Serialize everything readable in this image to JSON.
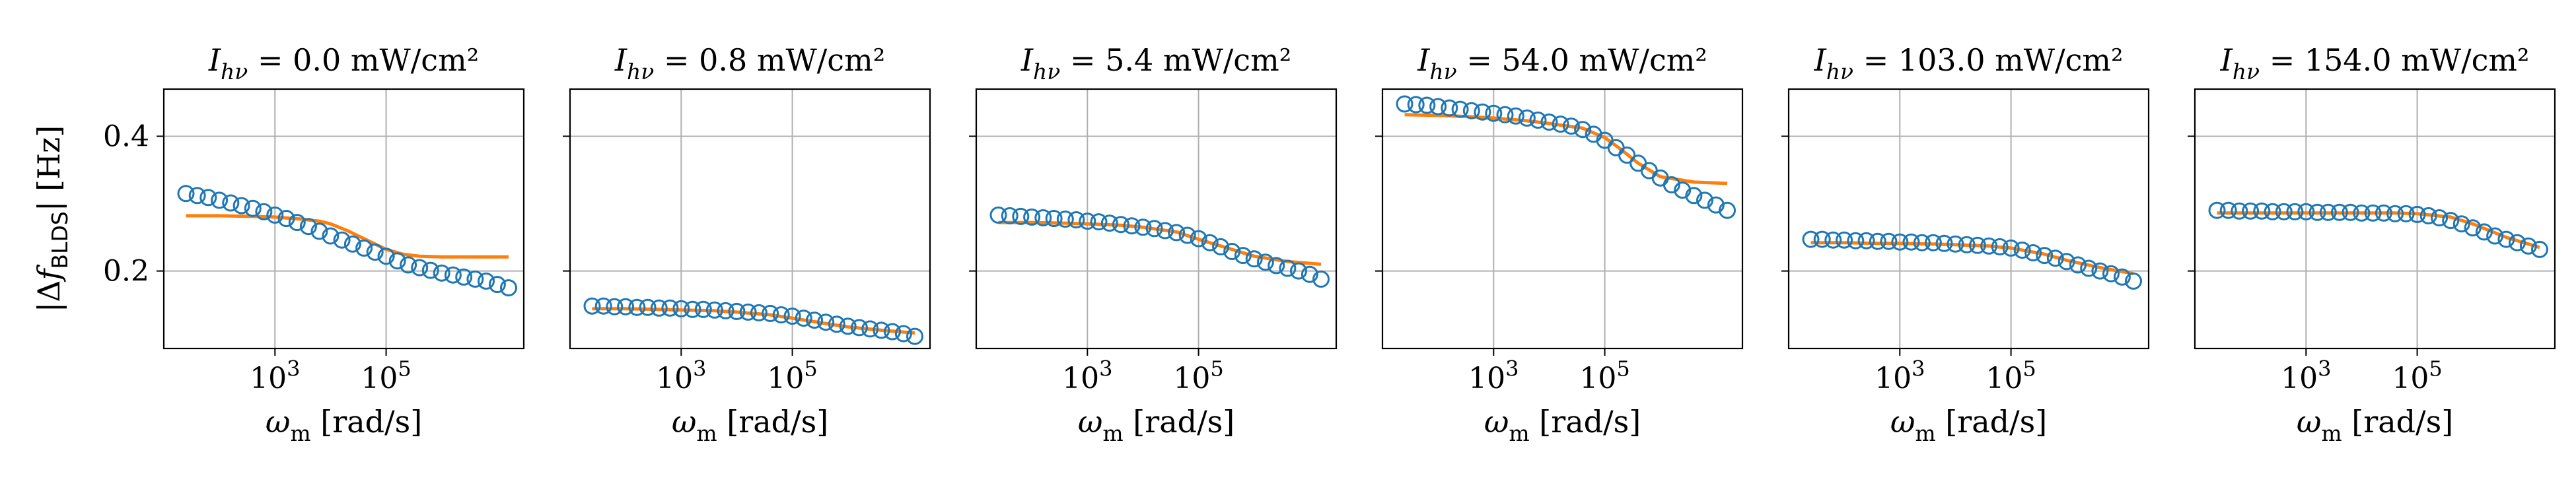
{
  "figure": {
    "ylabel": "|Δf_BLDS| [Hz]",
    "xlabel": "ω_m [rad/s]"
  },
  "chart_data": [
    {
      "type": "scatter",
      "title": "I_hν = 0.0 mW/cm²",
      "xlabel": "ω_m [rad/s]",
      "ylabel": "|Δf_BLDS| [Hz]",
      "x_scale": "log",
      "xlim": [
        10,
        30000000
      ],
      "ylim": [
        0.085,
        0.47
      ],
      "x_ticks": [
        {
          "value": 1000,
          "label": "10^3"
        },
        {
          "value": 100000,
          "label": "10^5"
        }
      ],
      "y_ticks": [
        {
          "value": 0.2,
          "label": "0.2"
        },
        {
          "value": 0.4,
          "label": "0.4"
        }
      ],
      "grid": true,
      "series": [
        {
          "kind": "markers",
          "x": [
            25,
            40,
            63,
            100,
            160,
            250,
            400,
            630,
            1000,
            1600,
            2500,
            4000,
            6300,
            10000,
            16000,
            25000,
            40000,
            63000,
            100000,
            160000,
            250000,
            400000,
            630000,
            1000000,
            1600000,
            2500000,
            4000000,
            6300000,
            10000000,
            16000000
          ],
          "y": [
            0.315,
            0.312,
            0.309,
            0.305,
            0.301,
            0.297,
            0.293,
            0.288,
            0.283,
            0.278,
            0.272,
            0.266,
            0.259,
            0.252,
            0.246,
            0.24,
            0.234,
            0.228,
            0.222,
            0.215,
            0.209,
            0.205,
            0.201,
            0.197,
            0.194,
            0.191,
            0.188,
            0.185,
            0.18,
            0.175
          ]
        },
        {
          "kind": "fit",
          "x": [
            25,
            100,
            400,
            1000,
            3000,
            6300,
            10000,
            20000,
            40000,
            63000,
            100000,
            200000,
            400000,
            1000000,
            4000000,
            16000000
          ],
          "y": [
            0.282,
            0.282,
            0.281,
            0.28,
            0.277,
            0.274,
            0.27,
            0.26,
            0.248,
            0.24,
            0.232,
            0.225,
            0.222,
            0.221,
            0.221,
            0.221
          ]
        }
      ]
    },
    {
      "type": "scatter",
      "title": "I_hν = 0.8 mW/cm²",
      "xlabel": "ω_m [rad/s]",
      "x_scale": "log",
      "xlim": [
        10,
        30000000
      ],
      "ylim": [
        0.085,
        0.47
      ],
      "x_ticks": [
        {
          "value": 1000,
          "label": "10^3"
        },
        {
          "value": 100000,
          "label": "10^5"
        }
      ],
      "y_ticks": [
        {
          "value": 0.2,
          "label": ""
        },
        {
          "value": 0.4,
          "label": ""
        }
      ],
      "grid": true,
      "series": [
        {
          "kind": "markers",
          "x": [
            25,
            40,
            63,
            100,
            160,
            250,
            400,
            630,
            1000,
            1600,
            2500,
            4000,
            6300,
            10000,
            16000,
            25000,
            40000,
            63000,
            100000,
            160000,
            250000,
            400000,
            630000,
            1000000,
            1600000,
            2500000,
            4000000,
            6300000,
            10000000,
            16000000
          ],
          "y": [
            0.148,
            0.148,
            0.147,
            0.147,
            0.146,
            0.146,
            0.145,
            0.145,
            0.144,
            0.143,
            0.143,
            0.142,
            0.141,
            0.14,
            0.139,
            0.138,
            0.137,
            0.135,
            0.133,
            0.13,
            0.127,
            0.124,
            0.121,
            0.118,
            0.116,
            0.114,
            0.112,
            0.11,
            0.107,
            0.103
          ]
        },
        {
          "kind": "fit",
          "x": [
            25,
            100,
            400,
            1000,
            4000,
            10000,
            40000,
            100000,
            400000,
            1000000,
            4000000,
            16000000
          ],
          "y": [
            0.144,
            0.144,
            0.143,
            0.142,
            0.141,
            0.139,
            0.135,
            0.13,
            0.122,
            0.117,
            0.112,
            0.108
          ]
        }
      ]
    },
    {
      "type": "scatter",
      "title": "I_hν = 5.4 mW/cm²",
      "xlabel": "ω_m [rad/s]",
      "x_scale": "log",
      "xlim": [
        10,
        30000000
      ],
      "ylim": [
        0.085,
        0.47
      ],
      "x_ticks": [
        {
          "value": 1000,
          "label": "10^3"
        },
        {
          "value": 100000,
          "label": "10^5"
        }
      ],
      "y_ticks": [
        {
          "value": 0.2,
          "label": ""
        },
        {
          "value": 0.4,
          "label": ""
        }
      ],
      "grid": true,
      "series": [
        {
          "kind": "markers",
          "x": [
            25,
            40,
            63,
            100,
            160,
            250,
            400,
            630,
            1000,
            1600,
            2500,
            4000,
            6300,
            10000,
            16000,
            25000,
            40000,
            63000,
            100000,
            160000,
            250000,
            400000,
            630000,
            1000000,
            1600000,
            2500000,
            4000000,
            6300000,
            10000000,
            16000000
          ],
          "y": [
            0.283,
            0.282,
            0.281,
            0.28,
            0.279,
            0.278,
            0.277,
            0.276,
            0.274,
            0.273,
            0.271,
            0.269,
            0.267,
            0.265,
            0.263,
            0.26,
            0.257,
            0.253,
            0.248,
            0.242,
            0.236,
            0.229,
            0.223,
            0.218,
            0.213,
            0.208,
            0.204,
            0.2,
            0.195,
            0.188
          ]
        },
        {
          "kind": "fit",
          "x": [
            25,
            100,
            400,
            1000,
            4000,
            10000,
            40000,
            100000,
            400000,
            1000000,
            4000000,
            16000000
          ],
          "y": [
            0.272,
            0.272,
            0.271,
            0.27,
            0.268,
            0.265,
            0.258,
            0.247,
            0.232,
            0.222,
            0.214,
            0.21
          ]
        }
      ]
    },
    {
      "type": "scatter",
      "title": "I_hν = 54.0 mW/cm²",
      "xlabel": "ω_m [rad/s]",
      "x_scale": "log",
      "xlim": [
        10,
        30000000
      ],
      "ylim": [
        0.085,
        0.47
      ],
      "x_ticks": [
        {
          "value": 1000,
          "label": "10^3"
        },
        {
          "value": 100000,
          "label": "10^5"
        }
      ],
      "y_ticks": [
        {
          "value": 0.2,
          "label": ""
        },
        {
          "value": 0.4,
          "label": ""
        }
      ],
      "grid": true,
      "series": [
        {
          "kind": "markers",
          "x": [
            25,
            40,
            63,
            100,
            160,
            250,
            400,
            630,
            1000,
            1600,
            2500,
            4000,
            6300,
            10000,
            16000,
            25000,
            40000,
            63000,
            100000,
            160000,
            250000,
            400000,
            630000,
            1000000,
            1600000,
            2500000,
            4000000,
            6300000,
            10000000,
            16000000
          ],
          "y": [
            0.448,
            0.447,
            0.446,
            0.444,
            0.442,
            0.44,
            0.438,
            0.436,
            0.434,
            0.432,
            0.43,
            0.427,
            0.424,
            0.421,
            0.418,
            0.415,
            0.41,
            0.403,
            0.394,
            0.383,
            0.372,
            0.36,
            0.349,
            0.338,
            0.328,
            0.32,
            0.312,
            0.305,
            0.298,
            0.29
          ]
        },
        {
          "kind": "fit",
          "x": [
            25,
            100,
            400,
            1000,
            4000,
            10000,
            40000,
            100000,
            200000,
            400000,
            1000000,
            4000000,
            16000000
          ],
          "y": [
            0.432,
            0.431,
            0.429,
            0.427,
            0.423,
            0.419,
            0.412,
            0.398,
            0.38,
            0.36,
            0.34,
            0.332,
            0.33
          ]
        }
      ]
    },
    {
      "type": "scatter",
      "title": "I_hν = 103.0 mW/cm²",
      "xlabel": "ω_m [rad/s]",
      "x_scale": "log",
      "xlim": [
        10,
        30000000
      ],
      "ylim": [
        0.085,
        0.47
      ],
      "x_ticks": [
        {
          "value": 1000,
          "label": "10^3"
        },
        {
          "value": 100000,
          "label": "10^5"
        }
      ],
      "y_ticks": [
        {
          "value": 0.2,
          "label": ""
        },
        {
          "value": 0.4,
          "label": ""
        }
      ],
      "grid": true,
      "series": [
        {
          "kind": "markers",
          "x": [
            25,
            40,
            63,
            100,
            160,
            250,
            400,
            630,
            1000,
            1600,
            2500,
            4000,
            6300,
            10000,
            16000,
            25000,
            40000,
            63000,
            100000,
            160000,
            250000,
            400000,
            630000,
            1000000,
            1600000,
            2500000,
            4000000,
            6300000,
            10000000,
            16000000
          ],
          "y": [
            0.247,
            0.247,
            0.246,
            0.246,
            0.245,
            0.245,
            0.244,
            0.244,
            0.243,
            0.243,
            0.242,
            0.242,
            0.241,
            0.24,
            0.239,
            0.238,
            0.237,
            0.236,
            0.234,
            0.231,
            0.227,
            0.223,
            0.219,
            0.214,
            0.209,
            0.204,
            0.2,
            0.196,
            0.191,
            0.185
          ]
        },
        {
          "kind": "fit",
          "x": [
            25,
            100,
            400,
            1000,
            4000,
            10000,
            40000,
            100000,
            400000,
            1000000,
            4000000,
            16000000
          ],
          "y": [
            0.242,
            0.242,
            0.241,
            0.241,
            0.24,
            0.239,
            0.237,
            0.234,
            0.225,
            0.216,
            0.205,
            0.196
          ]
        }
      ]
    },
    {
      "type": "scatter",
      "title": "I_hν = 154.0 mW/cm²",
      "xlabel": "ω_m [rad/s]",
      "x_scale": "log",
      "xlim": [
        10,
        30000000
      ],
      "ylim": [
        0.085,
        0.47
      ],
      "x_ticks": [
        {
          "value": 1000,
          "label": "10^3"
        },
        {
          "value": 100000,
          "label": "10^5"
        }
      ],
      "y_ticks": [
        {
          "value": 0.2,
          "label": ""
        },
        {
          "value": 0.4,
          "label": ""
        }
      ],
      "grid": true,
      "series": [
        {
          "kind": "markers",
          "x": [
            25,
            40,
            63,
            100,
            160,
            250,
            400,
            630,
            1000,
            1600,
            2500,
            4000,
            6300,
            10000,
            16000,
            25000,
            40000,
            63000,
            100000,
            160000,
            250000,
            400000,
            630000,
            1000000,
            1600000,
            2500000,
            4000000,
            6300000,
            10000000,
            16000000
          ],
          "y": [
            0.29,
            0.29,
            0.289,
            0.289,
            0.289,
            0.288,
            0.288,
            0.288,
            0.288,
            0.287,
            0.287,
            0.287,
            0.287,
            0.286,
            0.286,
            0.286,
            0.285,
            0.285,
            0.284,
            0.282,
            0.279,
            0.275,
            0.27,
            0.264,
            0.258,
            0.252,
            0.247,
            0.242,
            0.237,
            0.232
          ]
        },
        {
          "kind": "fit",
          "x": [
            25,
            100,
            400,
            1000,
            4000,
            10000,
            40000,
            100000,
            400000,
            1000000,
            4000000,
            16000000
          ],
          "y": [
            0.286,
            0.286,
            0.286,
            0.286,
            0.286,
            0.286,
            0.286,
            0.285,
            0.28,
            0.27,
            0.25,
            0.235
          ]
        }
      ]
    }
  ],
  "colors": {
    "markers": "#1f77b4",
    "fit": "#ff7f0e",
    "grid": "#b0b0b0",
    "axes": "#000000",
    "background": "#ffffff"
  }
}
